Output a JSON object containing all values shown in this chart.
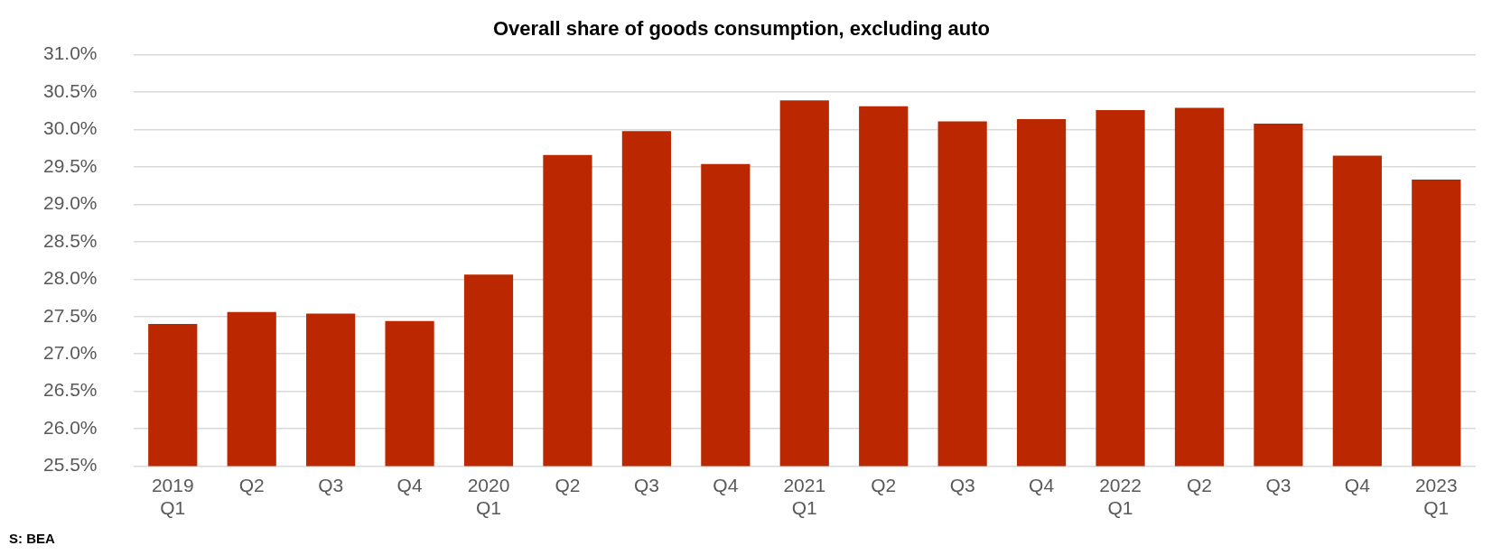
{
  "chart_data": {
    "type": "bar",
    "title": "Overall share of goods consumption, excluding auto",
    "categories": [
      "2019\nQ1",
      "Q2",
      "Q3",
      "Q4",
      "2020\nQ1",
      "Q2",
      "Q3",
      "Q4",
      "2021\nQ1",
      "Q2",
      "Q3",
      "Q4",
      "2022\nQ1",
      "Q2",
      "Q3",
      "Q4",
      "2023\nQ1"
    ],
    "values": [
      27.4,
      27.56,
      27.54,
      27.44,
      28.06,
      29.66,
      29.98,
      29.54,
      30.39,
      30.31,
      30.11,
      30.14,
      30.26,
      30.29,
      30.08,
      29.65,
      29.33
    ],
    "color": "#bb2800",
    "ylim": [
      25.5,
      31.0
    ],
    "yticks": [
      {
        "value": 25.5,
        "label": "25.5%"
      },
      {
        "value": 26.0,
        "label": "26.0%"
      },
      {
        "value": 26.5,
        "label": "26.5%"
      },
      {
        "value": 27.0,
        "label": "27.0%"
      },
      {
        "value": 27.5,
        "label": "27.5%"
      },
      {
        "value": 28.0,
        "label": "28.0%"
      },
      {
        "value": 28.5,
        "label": "28.5%"
      },
      {
        "value": 29.0,
        "label": "29.0%"
      },
      {
        "value": 29.5,
        "label": "29.5%"
      },
      {
        "value": 30.0,
        "label": "30.0%"
      },
      {
        "value": 30.5,
        "label": "30.5%"
      },
      {
        "value": 31.0,
        "label": "31.0%"
      }
    ],
    "grid": "y",
    "legend": false,
    "annotations": [
      "S: BEA"
    ]
  }
}
